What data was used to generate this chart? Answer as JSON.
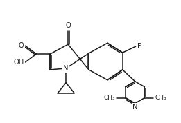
{
  "bg_color": "#ffffff",
  "line_color": "#1a1a1a",
  "line_width": 1.1,
  "font_size": 7.2,
  "font_size_small": 6.5,
  "xlim": [
    0,
    261
  ],
  "ylim": [
    0,
    178
  ]
}
